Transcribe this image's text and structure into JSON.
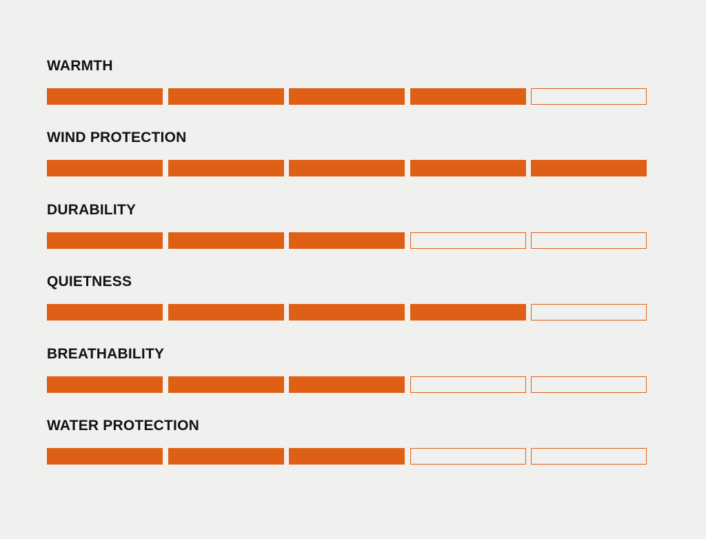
{
  "accent_color": "#de5f15",
  "ratings": [
    {
      "label": "WARMTH",
      "value": 4,
      "max": 5
    },
    {
      "label": "WIND PROTECTION",
      "value": 5,
      "max": 5
    },
    {
      "label": "DURABILITY",
      "value": 3,
      "max": 5
    },
    {
      "label": "QUIETNESS",
      "value": 4,
      "max": 5
    },
    {
      "label": "BREATHABILITY",
      "value": 3,
      "max": 5
    },
    {
      "label": "WATER PROTECTION",
      "value": 3,
      "max": 5
    }
  ]
}
